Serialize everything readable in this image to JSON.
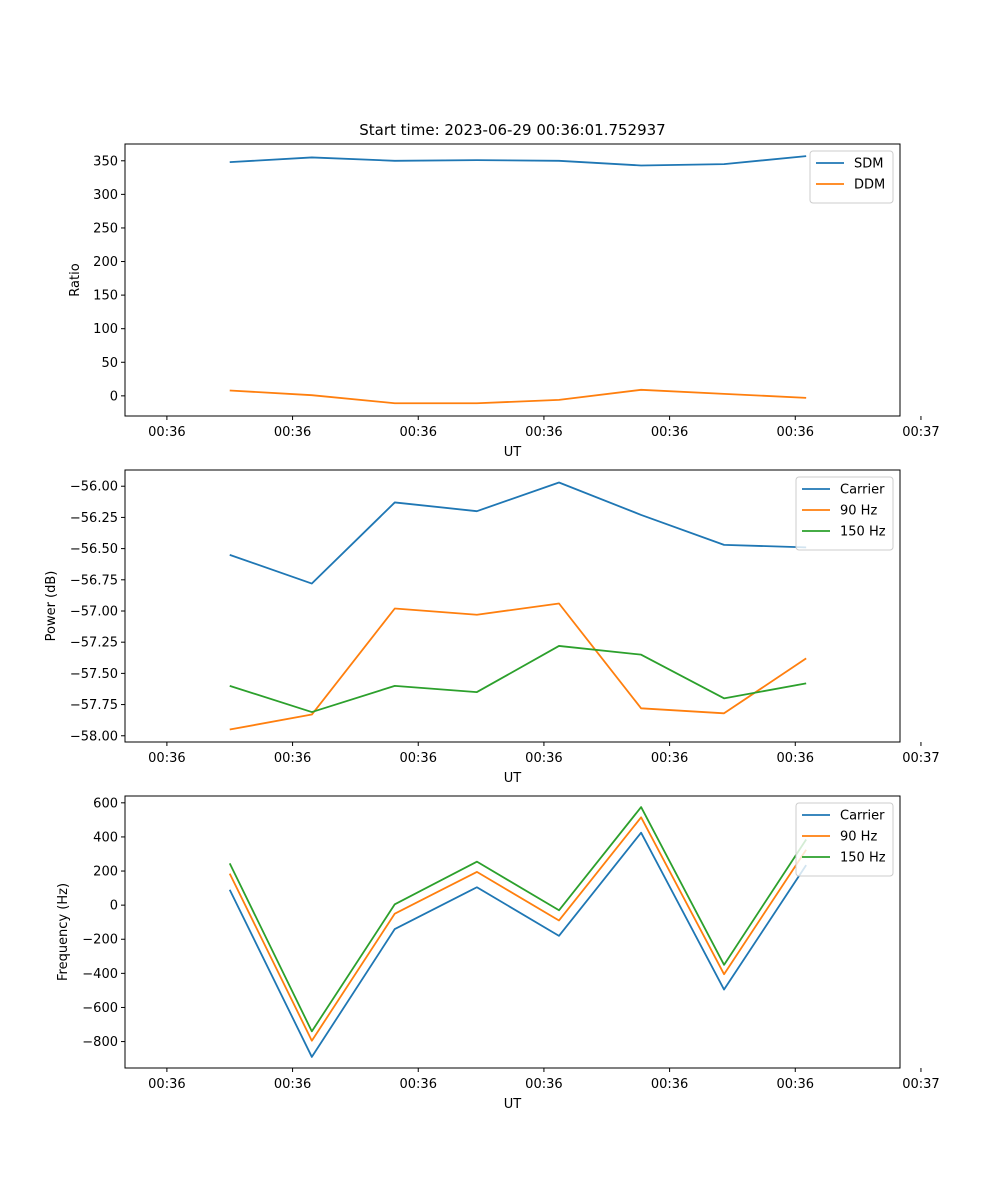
{
  "colors": {
    "c0": "#1f77b4",
    "c1": "#ff7f0e",
    "c2": "#2ca02c"
  },
  "chart_data": [
    {
      "type": "line",
      "title": "Start time: 2023-06-29 00:36:01.752937",
      "xlabel": "UT",
      "ylabel": "Ratio",
      "ylim": [
        -30,
        375
      ],
      "yticks": [
        0,
        50,
        100,
        150,
        200,
        250,
        300,
        350
      ],
      "ytick_labels": [
        "0",
        "50",
        "100",
        "150",
        "200",
        "250",
        "300",
        "350"
      ],
      "xlim": [
        -0.5,
        8.75
      ],
      "xticks": [
        0,
        1.5,
        3,
        4.5,
        6,
        7.5,
        9
      ],
      "xtick_labels": [
        "00:36",
        "00:36",
        "00:36",
        "00:36",
        "00:36",
        "00:36",
        "00:37"
      ],
      "x": [
        0.75,
        1.73,
        2.72,
        3.7,
        4.68,
        5.66,
        6.65,
        7.63
      ],
      "legend": "top-right",
      "grid": false,
      "series": [
        {
          "name": "SDM",
          "color": "#1f77b4",
          "values": [
            348,
            355,
            350,
            351,
            350,
            343,
            345,
            357
          ]
        },
        {
          "name": "DDM",
          "color": "#ff7f0e",
          "values": [
            8,
            1,
            -11,
            -11,
            -6,
            9,
            3,
            -3
          ]
        }
      ]
    },
    {
      "type": "line",
      "title": "",
      "xlabel": "UT",
      "ylabel": "Power (dB)",
      "ylim": [
        -58.05,
        -55.87
      ],
      "yticks": [
        -58.0,
        -57.75,
        -57.5,
        -57.25,
        -57.0,
        -56.75,
        -56.5,
        -56.25,
        -56.0
      ],
      "ytick_labels": [
        "−58.00",
        "−57.75",
        "−57.50",
        "−57.25",
        "−57.00",
        "−56.75",
        "−56.50",
        "−56.25",
        "−56.00"
      ],
      "xlim": [
        -0.5,
        8.75
      ],
      "xticks": [
        0,
        1.5,
        3,
        4.5,
        6,
        7.5,
        9
      ],
      "xtick_labels": [
        "00:36",
        "00:36",
        "00:36",
        "00:36",
        "00:36",
        "00:36",
        "00:37"
      ],
      "x": [
        0.75,
        1.73,
        2.72,
        3.7,
        4.68,
        5.66,
        6.65,
        7.63
      ],
      "legend": "top-right",
      "grid": false,
      "series": [
        {
          "name": "Carrier",
          "color": "#1f77b4",
          "values": [
            -56.55,
            -56.78,
            -56.13,
            -56.2,
            -55.97,
            -56.23,
            -56.47,
            -56.49
          ]
        },
        {
          "name": "90 Hz",
          "color": "#ff7f0e",
          "values": [
            -57.95,
            -57.83,
            -56.98,
            -57.03,
            -56.94,
            -57.78,
            -57.82,
            -57.38
          ]
        },
        {
          "name": "150 Hz",
          "color": "#2ca02c",
          "values": [
            -57.6,
            -57.81,
            -57.6,
            -57.65,
            -57.28,
            -57.35,
            -57.7,
            -57.58
          ]
        }
      ]
    },
    {
      "type": "line",
      "title": "",
      "xlabel": "UT",
      "ylabel": "Frequency (Hz)",
      "ylim": [
        -955,
        640
      ],
      "yticks": [
        -800,
        -600,
        -400,
        -200,
        0,
        200,
        400,
        600
      ],
      "ytick_labels": [
        "−800",
        "−600",
        "−400",
        "−200",
        "0",
        "200",
        "400",
        "600"
      ],
      "xlim": [
        -0.5,
        8.75
      ],
      "xticks": [
        0,
        1.5,
        3,
        4.5,
        6,
        7.5,
        9
      ],
      "xtick_labels": [
        "00:36",
        "00:36",
        "00:36",
        "00:36",
        "00:36",
        "00:36",
        "00:37"
      ],
      "x": [
        0.75,
        1.73,
        2.72,
        3.7,
        4.68,
        5.66,
        6.65,
        7.63
      ],
      "legend": "top-right",
      "grid": false,
      "series": [
        {
          "name": "Carrier",
          "color": "#1f77b4",
          "values": [
            90,
            -890,
            -140,
            105,
            -180,
            425,
            -495,
            235
          ]
        },
        {
          "name": "90 Hz",
          "color": "#ff7f0e",
          "values": [
            185,
            -795,
            -50,
            195,
            -90,
            515,
            -405,
            325
          ]
        },
        {
          "name": "150 Hz",
          "color": "#2ca02c",
          "values": [
            245,
            -740,
            5,
            255,
            -30,
            575,
            -350,
            385
          ]
        }
      ]
    }
  ]
}
